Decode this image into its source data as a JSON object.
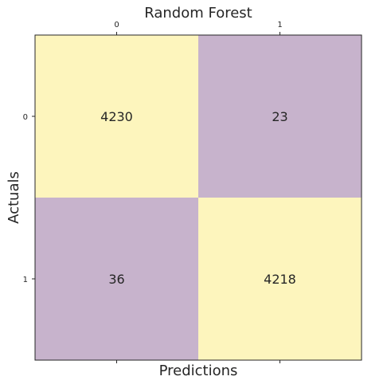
{
  "chart_data": {
    "type": "heatmap",
    "title": "Random Forest",
    "xlabel": "Predictions",
    "ylabel": "Actuals",
    "x_tick_labels": [
      "0",
      "1"
    ],
    "y_tick_labels": [
      "0",
      "1"
    ],
    "x_tick_position": "top",
    "grid": false,
    "legend": "none",
    "values": [
      [
        4230,
        23
      ],
      [
        36,
        4218
      ]
    ],
    "colors": {
      "high": "#fdf5bd",
      "low": "#c7b3cc",
      "text": "#262626",
      "axes": "#262626"
    }
  }
}
